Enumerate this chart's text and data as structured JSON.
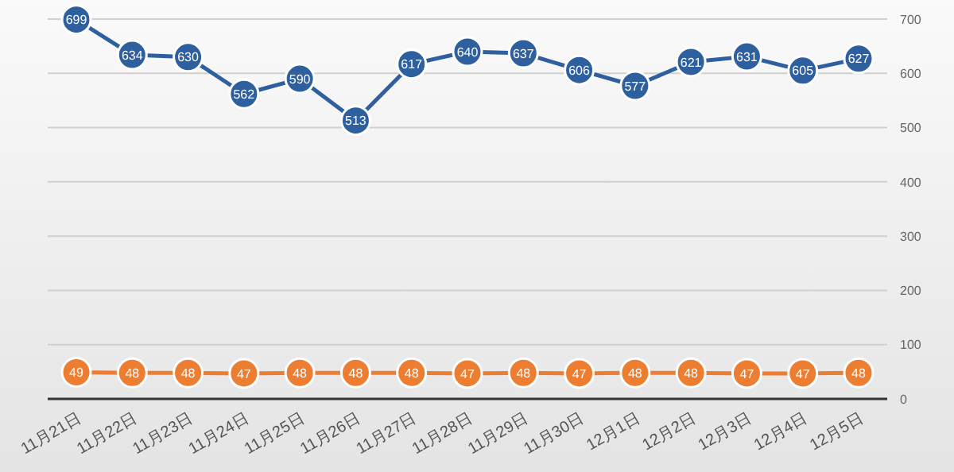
{
  "chart_data": {
    "type": "line",
    "categories": [
      "11月21日",
      "11月22日",
      "11月23日",
      "11月24日",
      "11月25日",
      "11月26日",
      "11月27日",
      "11月28日",
      "11月29日",
      "11月30日",
      "12月1日",
      "12月2日",
      "12月3日",
      "12月4日",
      "12月5日"
    ],
    "series": [
      {
        "color": "#2e5f9e",
        "values": [
          699,
          634,
          630,
          562,
          590,
          513,
          617,
          640,
          637,
          606,
          577,
          621,
          631,
          605,
          627
        ]
      },
      {
        "color": "#ed7d31",
        "values": [
          49,
          48,
          48,
          47,
          48,
          48,
          48,
          47,
          48,
          47,
          48,
          48,
          47,
          47,
          48
        ]
      }
    ],
    "ylim": [
      0,
      700
    ],
    "yticks": [
      0,
      100,
      200,
      300,
      400,
      500,
      600,
      700
    ],
    "grid": "y",
    "data_labels": true,
    "marker": "circle",
    "line_style": "solid"
  }
}
